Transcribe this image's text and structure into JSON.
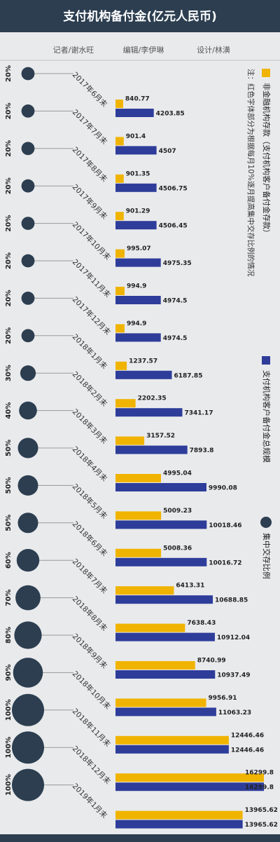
{
  "chart_data": {
    "type": "bar",
    "orientation": "horizontal",
    "title": "支付机构备付金(亿元人民币)",
    "credits": [
      "记者/谢水旺",
      "编辑/李伊琳",
      "设计/林潢"
    ],
    "note": "注：红色字体部分为根据每月10%逐月提高集中交存比例的情况",
    "categories": [
      "2017年6月末",
      "2017年7月末",
      "2017年8月末",
      "2017年9月末",
      "2017年10月末",
      "2017年11月末",
      "2017年12月末",
      "2018年1月末",
      "2018年2月末",
      "2018年3月末",
      "2018年4月末",
      "2018年5月末",
      "2018年6月末",
      "2018年7月末",
      "2018年8月末",
      "2018年9月末",
      "2018年10月末",
      "2018年11月末",
      "2018年12月末",
      "2019年1月末"
    ],
    "series": [
      {
        "name": "非金融机构存款（支付机构客户备付金存款）",
        "color": "#f0b400",
        "values": [
          840.77,
          901.4,
          901.35,
          901.29,
          995.07,
          994.9,
          994.9,
          1237.57,
          2202.35,
          3157.52,
          4995.04,
          5009.23,
          5008.36,
          6413.31,
          7638.43,
          8740.99,
          9956.91,
          12446.46,
          16299.8,
          13965.62
        ]
      },
      {
        "name": "支付机构客户备付金总规模",
        "color": "#2e3d9a",
        "values": [
          4203.85,
          4507,
          4506.75,
          4506.45,
          4975.35,
          4974.5,
          4974.5,
          6187.85,
          7341.17,
          7893.8,
          9990.08,
          10018.46,
          10016.72,
          10688.85,
          10912.04,
          10937.49,
          11063.23,
          12446.46,
          16299.8,
          13965.62
        ]
      },
      {
        "name": "集中交存比例",
        "color": "#2c3e50",
        "mark": "circle",
        "values": [
          20,
          20,
          20,
          20,
          20,
          20,
          20,
          20,
          30,
          40,
          50,
          50,
          50,
          60,
          70,
          80,
          90,
          100,
          100,
          100
        ],
        "value_labels": [
          "20%",
          "20%",
          "20%",
          "20%",
          "20%",
          "20%",
          "20%",
          "20%",
          "30%",
          "40%",
          "50%",
          "50%",
          "50%",
          "60%",
          "70%",
          "80%",
          "90%",
          "100%",
          "100%",
          "100%"
        ]
      }
    ]
  }
}
